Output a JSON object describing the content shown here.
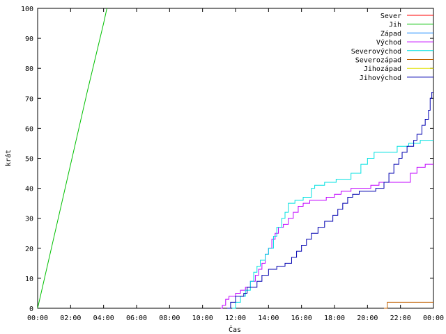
{
  "chart_data": {
    "type": "line",
    "title": "",
    "xlabel": "Čas",
    "ylabel": "krát",
    "x_unit": "hours",
    "xlim": [
      0,
      24
    ],
    "ylim": [
      0,
      100
    ],
    "grid": false,
    "legend_position": "top-right",
    "x_ticks": [
      {
        "value": 0,
        "label": "00:00"
      },
      {
        "value": 2,
        "label": "02:00"
      },
      {
        "value": 4,
        "label": "04:00"
      },
      {
        "value": 6,
        "label": "06:00"
      },
      {
        "value": 8,
        "label": "08:00"
      },
      {
        "value": 10,
        "label": "10:00"
      },
      {
        "value": 12,
        "label": "12:00"
      },
      {
        "value": 14,
        "label": "14:00"
      },
      {
        "value": 16,
        "label": "16:00"
      },
      {
        "value": 18,
        "label": "18:00"
      },
      {
        "value": 20,
        "label": "20:00"
      },
      {
        "value": 22,
        "label": "22:00"
      },
      {
        "value": 24,
        "label": "00:00"
      }
    ],
    "y_ticks": [
      {
        "value": 0,
        "label": "0"
      },
      {
        "value": 10,
        "label": "10"
      },
      {
        "value": 20,
        "label": "20"
      },
      {
        "value": 30,
        "label": "30"
      },
      {
        "value": 40,
        "label": "40"
      },
      {
        "value": 50,
        "label": "50"
      },
      {
        "value": 60,
        "label": "60"
      },
      {
        "value": 70,
        "label": "70"
      },
      {
        "value": 80,
        "label": "80"
      },
      {
        "value": 90,
        "label": "90"
      },
      {
        "value": 100,
        "label": "100"
      }
    ],
    "series": [
      {
        "name": "Sever",
        "color": "#ff0000",
        "step": true,
        "points": []
      },
      {
        "name": "Jih",
        "color": "#00c000",
        "step": false,
        "points": [
          [
            0,
            0
          ],
          [
            1,
            24
          ],
          [
            2,
            48
          ],
          [
            3,
            72
          ],
          [
            4,
            95
          ],
          [
            4.2,
            100
          ]
        ]
      },
      {
        "name": "Západ",
        "color": "#0080ff",
        "step": true,
        "points": []
      },
      {
        "name": "Východ",
        "color": "#c000ff",
        "step": true,
        "points": [
          [
            11.1,
            0
          ],
          [
            11.2,
            1
          ],
          [
            11.4,
            3
          ],
          [
            11.6,
            4
          ],
          [
            12.0,
            5
          ],
          [
            12.3,
            6
          ],
          [
            12.6,
            7
          ],
          [
            12.9,
            9
          ],
          [
            13.2,
            11
          ],
          [
            13.4,
            13
          ],
          [
            13.6,
            15
          ],
          [
            13.8,
            18
          ],
          [
            14.0,
            20
          ],
          [
            14.2,
            23
          ],
          [
            14.4,
            25
          ],
          [
            14.6,
            27
          ],
          [
            14.9,
            28
          ],
          [
            15.2,
            30
          ],
          [
            15.5,
            32
          ],
          [
            15.8,
            34
          ],
          [
            16.1,
            35
          ],
          [
            16.5,
            36
          ],
          [
            17.5,
            37
          ],
          [
            18.0,
            38
          ],
          [
            18.4,
            39
          ],
          [
            19.0,
            40
          ],
          [
            20.2,
            41
          ],
          [
            20.7,
            42
          ],
          [
            22.6,
            45
          ],
          [
            23.0,
            47
          ],
          [
            23.5,
            48
          ],
          [
            24.0,
            48
          ]
        ]
      },
      {
        "name": "Severovýchod",
        "color": "#00e0e0",
        "step": true,
        "points": [
          [
            11.8,
            0
          ],
          [
            12.0,
            2
          ],
          [
            12.3,
            4
          ],
          [
            12.6,
            6
          ],
          [
            12.9,
            9
          ],
          [
            13.1,
            12
          ],
          [
            13.3,
            14
          ],
          [
            13.5,
            16
          ],
          [
            13.8,
            18
          ],
          [
            14.0,
            20
          ],
          [
            14.3,
            24
          ],
          [
            14.5,
            27
          ],
          [
            14.8,
            30
          ],
          [
            15.0,
            32
          ],
          [
            15.2,
            35
          ],
          [
            15.6,
            36
          ],
          [
            16.1,
            37
          ],
          [
            16.6,
            40
          ],
          [
            16.8,
            41
          ],
          [
            17.4,
            42
          ],
          [
            18.1,
            43
          ],
          [
            19.0,
            45
          ],
          [
            19.6,
            48
          ],
          [
            20.0,
            50
          ],
          [
            20.4,
            52
          ],
          [
            21.8,
            54
          ],
          [
            22.5,
            55
          ],
          [
            23.2,
            56
          ],
          [
            24.0,
            56
          ]
        ]
      },
      {
        "name": "Severozápad",
        "color": "#c06000",
        "step": true,
        "points": [
          [
            21.0,
            0
          ],
          [
            21.2,
            2
          ],
          [
            24.0,
            2
          ]
        ]
      },
      {
        "name": "Jihozápad",
        "color": "#e0e000",
        "step": true,
        "points": []
      },
      {
        "name": "Jihovýchod",
        "color": "#0000b0",
        "step": true,
        "points": [
          [
            11.5,
            0
          ],
          [
            11.7,
            2
          ],
          [
            12.0,
            4
          ],
          [
            12.5,
            5
          ],
          [
            12.7,
            7
          ],
          [
            13.3,
            9
          ],
          [
            13.6,
            11
          ],
          [
            14.0,
            13
          ],
          [
            14.5,
            14
          ],
          [
            15.0,
            15
          ],
          [
            15.4,
            17
          ],
          [
            15.7,
            19
          ],
          [
            16.0,
            21
          ],
          [
            16.3,
            23
          ],
          [
            16.6,
            25
          ],
          [
            17.0,
            27
          ],
          [
            17.4,
            29
          ],
          [
            17.9,
            31
          ],
          [
            18.2,
            33
          ],
          [
            18.5,
            35
          ],
          [
            18.8,
            37
          ],
          [
            19.1,
            38
          ],
          [
            19.5,
            39
          ],
          [
            20.5,
            40
          ],
          [
            21.0,
            42
          ],
          [
            21.3,
            45
          ],
          [
            21.6,
            48
          ],
          [
            21.9,
            50
          ],
          [
            22.1,
            52
          ],
          [
            22.4,
            54
          ],
          [
            22.8,
            56
          ],
          [
            23.0,
            58
          ],
          [
            23.3,
            61
          ],
          [
            23.5,
            63
          ],
          [
            23.7,
            66
          ],
          [
            23.8,
            70
          ],
          [
            23.9,
            72
          ],
          [
            24.0,
            72
          ]
        ]
      }
    ]
  }
}
